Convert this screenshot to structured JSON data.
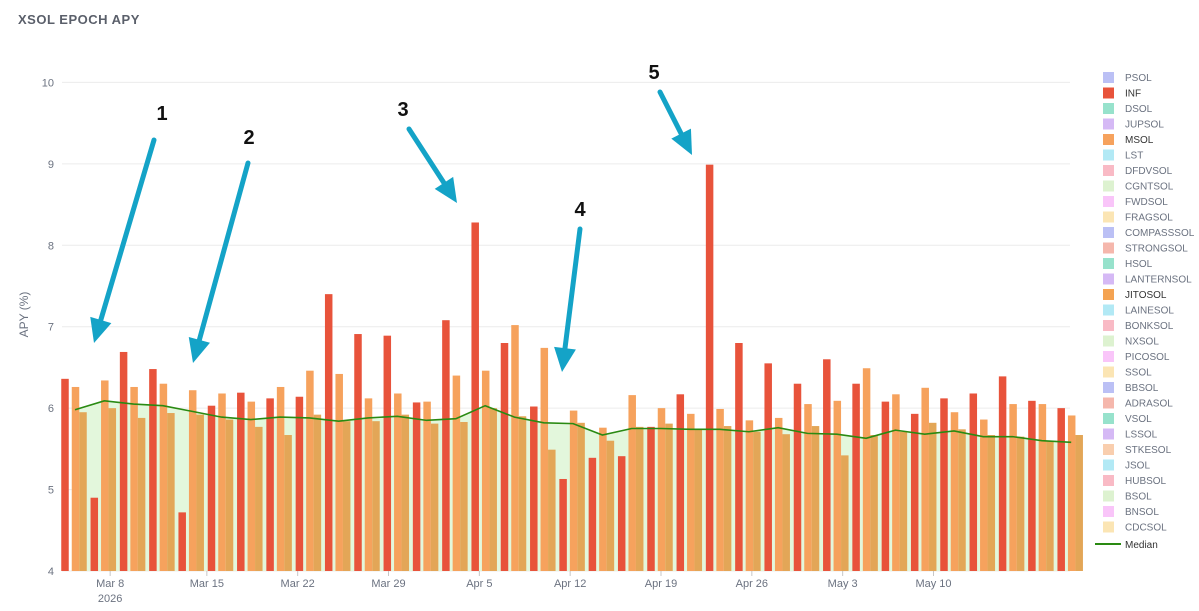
{
  "title": "XSOL EPOCH APY",
  "colors": {
    "inf": "#e8533b",
    "msol": "#f6a25d",
    "jitosol": "#e3a657",
    "median": "#2a8a12",
    "median_fill": "#e3f7dc",
    "arrow": "#14a3c7"
  },
  "chart_data": {
    "type": "bar",
    "ylabel": "APY (%)",
    "xlabel": "",
    "ylim": [
      4,
      10.3
    ],
    "yticks": [
      4,
      5,
      6,
      7,
      8,
      9,
      10
    ],
    "x_ticks": [
      {
        "label": "Mar 8",
        "sublabel": "2026",
        "epoch": 1.2
      },
      {
        "label": "Mar 15",
        "epoch": 4.5
      },
      {
        "label": "Mar 22",
        "epoch": 7.6
      },
      {
        "label": "Mar 29",
        "epoch": 10.7
      },
      {
        "label": "Apr 5",
        "epoch": 13.8
      },
      {
        "label": "Apr 12",
        "epoch": 16.9
      },
      {
        "label": "Apr 19",
        "epoch": 20.0
      },
      {
        "label": "Apr 26",
        "epoch": 23.1
      },
      {
        "label": "May 3",
        "epoch": 26.2
      },
      {
        "label": "May 10",
        "epoch": 29.3
      }
    ],
    "series": [
      {
        "name": "INF",
        "values": [
          6.36,
          4.9,
          6.69,
          6.48,
          4.72,
          6.03,
          6.19,
          6.12,
          6.14,
          7.4,
          6.91,
          6.89,
          6.07,
          7.08,
          8.28,
          6.8,
          6.02,
          5.13,
          5.39,
          5.41,
          5.77,
          6.17,
          8.99,
          6.8,
          6.55,
          6.3,
          6.6,
          6.3,
          6.08,
          5.93,
          6.12,
          6.18,
          6.39,
          6.09,
          6.0
        ]
      },
      {
        "name": "MSOL",
        "values": [
          6.26,
          6.34,
          6.26,
          6.3,
          6.22,
          6.18,
          6.08,
          6.26,
          6.46,
          6.42,
          6.12,
          6.18,
          6.08,
          6.4,
          6.46,
          7.02,
          6.74,
          5.97,
          5.76,
          6.16,
          6.0,
          5.93,
          5.99,
          5.85,
          5.88,
          6.05,
          6.09,
          6.49,
          6.17,
          6.25,
          5.95,
          5.86,
          6.05,
          6.05,
          5.91
        ]
      },
      {
        "name": "JITOSOL",
        "values": [
          5.95,
          6.0,
          5.88,
          5.94,
          5.92,
          5.86,
          5.77,
          5.67,
          5.92,
          5.84,
          5.84,
          5.92,
          5.81,
          5.83,
          6.0,
          5.9,
          5.49,
          5.82,
          5.6,
          5.77,
          5.81,
          5.74,
          5.78,
          5.71,
          5.68,
          5.78,
          5.42,
          5.67,
          5.71,
          5.82,
          5.74,
          5.67,
          5.65,
          5.59,
          5.67
        ]
      },
      {
        "name": "Median",
        "values": [
          5.98,
          6.09,
          6.05,
          6.03,
          5.96,
          5.89,
          5.86,
          5.89,
          5.88,
          5.84,
          5.88,
          5.9,
          5.85,
          5.87,
          6.03,
          5.89,
          5.82,
          5.81,
          5.67,
          5.75,
          5.75,
          5.74,
          5.74,
          5.71,
          5.76,
          5.69,
          5.68,
          5.63,
          5.73,
          5.68,
          5.72,
          5.65,
          5.65,
          5.6,
          5.58
        ]
      }
    ],
    "legend": {
      "position": "right",
      "items": [
        {
          "label": "PSOL",
          "color": "#aab0f2",
          "active": false
        },
        {
          "label": "INF",
          "color": "#e8533b",
          "active": true
        },
        {
          "label": "DSOL",
          "color": "#7ddbbf",
          "active": false
        },
        {
          "label": "JUPSOL",
          "color": "#cba8f2",
          "active": false
        },
        {
          "label": "MSOL",
          "color": "#f6a25d",
          "active": true
        },
        {
          "label": "LST",
          "color": "#9fe4f3",
          "active": false
        },
        {
          "label": "DFDVSOL",
          "color": "#f7a9b6",
          "active": false
        },
        {
          "label": "CGNTSOL",
          "color": "#d4efc4",
          "active": false
        },
        {
          "label": "FWDSOL",
          "color": "#f7b7f7",
          "active": false
        },
        {
          "label": "FRAGSOL",
          "color": "#fadfa1",
          "active": false
        },
        {
          "label": "COMPASSSOL",
          "color": "#aab0f2",
          "active": false
        },
        {
          "label": "STRONGSOL",
          "color": "#f2a597",
          "active": false
        },
        {
          "label": "HSOL",
          "color": "#7ddbbf",
          "active": false
        },
        {
          "label": "LANTERNSOL",
          "color": "#cba8f2",
          "active": false
        },
        {
          "label": "JITOSOL",
          "color": "#f4a352",
          "active": true
        },
        {
          "label": "LAINESOL",
          "color": "#9fe4f3",
          "active": false
        },
        {
          "label": "BONKSOL",
          "color": "#f7a9b6",
          "active": false
        },
        {
          "label": "NXSOL",
          "color": "#d4efc4",
          "active": false
        },
        {
          "label": "PICOSOL",
          "color": "#f7b7f7",
          "active": false
        },
        {
          "label": "SSOL",
          "color": "#fadfa1",
          "active": false
        },
        {
          "label": "BBSOL",
          "color": "#aab0f2",
          "active": false
        },
        {
          "label": "ADRASOL",
          "color": "#f2a597",
          "active": false
        },
        {
          "label": "VSOL",
          "color": "#7ddbbf",
          "active": false
        },
        {
          "label": "LSSOL",
          "color": "#cba8f2",
          "active": false
        },
        {
          "label": "STKESOL",
          "color": "#f7c29a",
          "active": false
        },
        {
          "label": "JSOL",
          "color": "#9fe4f3",
          "active": false
        },
        {
          "label": "HUBSOL",
          "color": "#f7a9b6",
          "active": false
        },
        {
          "label": "BSOL",
          "color": "#d4efc4",
          "active": false
        },
        {
          "label": "BNSOL",
          "color": "#f7b7f7",
          "active": false
        },
        {
          "label": "CDCSOL",
          "color": "#fadfa1",
          "active": false
        }
      ],
      "median_label": "Median"
    },
    "annotations": [
      {
        "label": "1"
      },
      {
        "label": "2"
      },
      {
        "label": "3"
      },
      {
        "label": "4"
      },
      {
        "label": "5"
      }
    ]
  }
}
